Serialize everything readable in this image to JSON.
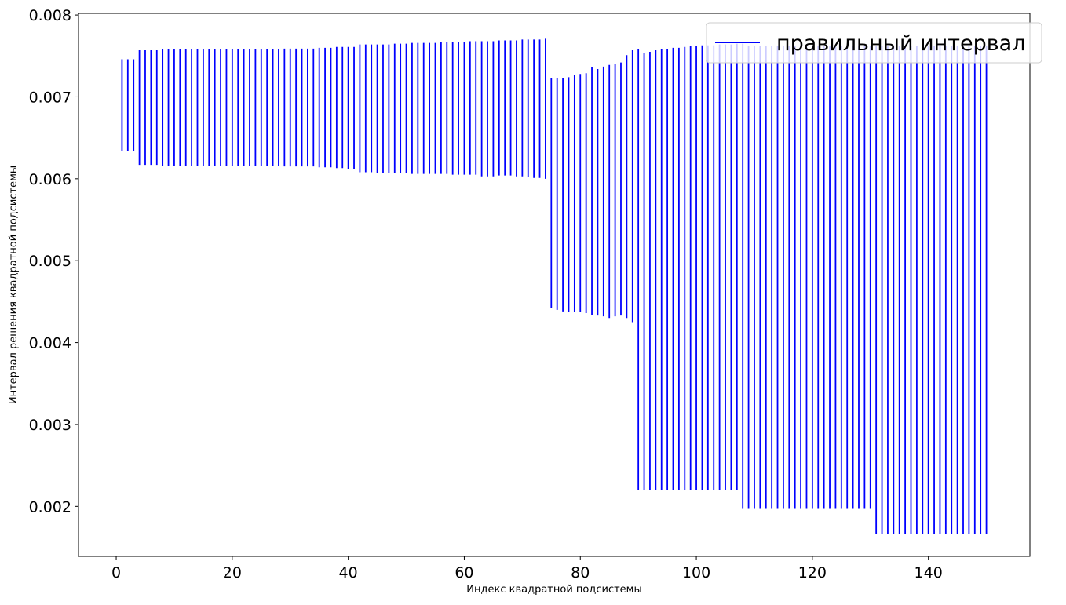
{
  "chart_data": {
    "type": "interval",
    "title": "",
    "xlabel": "Индекс квадратной подсистемы",
    "ylabel": "Интервал решения квадратной подсистемы",
    "xlim": [
      -6.5,
      157.5
    ],
    "ylim": [
      0.00139,
      0.00802
    ],
    "xticks": [
      0,
      20,
      40,
      60,
      80,
      100,
      120,
      140
    ],
    "xtick_labels": [
      "0",
      "20",
      "40",
      "60",
      "80",
      "100",
      "120",
      "140"
    ],
    "yticks": [
      0.002,
      0.003,
      0.004,
      0.005,
      0.006,
      0.007,
      0.008
    ],
    "ytick_labels": [
      "0.002",
      "0.003",
      "0.004",
      "0.005",
      "0.006",
      "0.007",
      "0.008"
    ],
    "grid": false,
    "legend_position": "top-right",
    "series": [
      {
        "name": "правильный интервал",
        "color": "#0000ff",
        "x_start": 1,
        "lower": [
          0.00634,
          0.00634,
          0.00634,
          0.00617,
          0.00617,
          0.00617,
          0.00617,
          0.00616,
          0.00616,
          0.00616,
          0.00616,
          0.00616,
          0.00616,
          0.00616,
          0.00616,
          0.00616,
          0.00616,
          0.00616,
          0.00616,
          0.00616,
          0.00616,
          0.00616,
          0.00616,
          0.00616,
          0.00616,
          0.00616,
          0.00616,
          0.00616,
          0.00615,
          0.00615,
          0.00615,
          0.00615,
          0.00615,
          0.00615,
          0.00614,
          0.00614,
          0.00614,
          0.00613,
          0.00613,
          0.00612,
          0.00612,
          0.00608,
          0.00608,
          0.00608,
          0.00607,
          0.00607,
          0.00607,
          0.00607,
          0.00607,
          0.00607,
          0.00606,
          0.00606,
          0.00606,
          0.00606,
          0.00606,
          0.00606,
          0.00606,
          0.00605,
          0.00605,
          0.00605,
          0.00605,
          0.00605,
          0.00603,
          0.00603,
          0.00603,
          0.00604,
          0.00604,
          0.00604,
          0.00603,
          0.00603,
          0.00602,
          0.00601,
          0.00601,
          0.006,
          0.00442,
          0.0044,
          0.00438,
          0.00437,
          0.00437,
          0.00437,
          0.00436,
          0.00434,
          0.00433,
          0.00432,
          0.0043,
          0.00432,
          0.00433,
          0.0043,
          0.00425,
          0.0022,
          0.0022,
          0.0022,
          0.0022,
          0.0022,
          0.0022,
          0.0022,
          0.0022,
          0.0022,
          0.0022,
          0.0022,
          0.0022,
          0.0022,
          0.0022,
          0.0022,
          0.0022,
          0.0022,
          0.0022,
          0.00197,
          0.00197,
          0.00197,
          0.00197,
          0.00197,
          0.00197,
          0.00197,
          0.00197,
          0.00197,
          0.00197,
          0.00197,
          0.00197,
          0.00197,
          0.00197,
          0.00197,
          0.00197,
          0.00197,
          0.00197,
          0.00197,
          0.00197,
          0.00197,
          0.00197,
          0.00197,
          0.00166,
          0.00166,
          0.00166,
          0.00166,
          0.00166,
          0.00166,
          0.00166,
          0.00166,
          0.00166,
          0.00166,
          0.00166,
          0.00166,
          0.00166,
          0.00166,
          0.00166,
          0.00166,
          0.00166,
          0.00166,
          0.00166,
          0.00166
        ],
        "upper": [
          0.00746,
          0.00746,
          0.00746,
          0.00757,
          0.00757,
          0.00757,
          0.00757,
          0.00758,
          0.00758,
          0.00758,
          0.00758,
          0.00758,
          0.00758,
          0.00758,
          0.00758,
          0.00758,
          0.00758,
          0.00758,
          0.00758,
          0.00758,
          0.00758,
          0.00758,
          0.00758,
          0.00758,
          0.00758,
          0.00758,
          0.00758,
          0.00758,
          0.00759,
          0.00759,
          0.00759,
          0.00759,
          0.00759,
          0.00759,
          0.0076,
          0.0076,
          0.0076,
          0.00761,
          0.00761,
          0.00761,
          0.00761,
          0.00764,
          0.00764,
          0.00764,
          0.00764,
          0.00764,
          0.00764,
          0.00765,
          0.00765,
          0.00765,
          0.00766,
          0.00766,
          0.00766,
          0.00766,
          0.00766,
          0.00767,
          0.00767,
          0.00767,
          0.00767,
          0.00767,
          0.00768,
          0.00768,
          0.00768,
          0.00768,
          0.00768,
          0.00769,
          0.00769,
          0.00769,
          0.00769,
          0.0077,
          0.0077,
          0.0077,
          0.0077,
          0.00771,
          0.00723,
          0.00723,
          0.00723,
          0.00724,
          0.00727,
          0.00728,
          0.00729,
          0.00736,
          0.00734,
          0.00737,
          0.00739,
          0.0074,
          0.00742,
          0.00751,
          0.00757,
          0.00758,
          0.00754,
          0.00755,
          0.00757,
          0.00758,
          0.00758,
          0.0076,
          0.0076,
          0.00761,
          0.00762,
          0.00762,
          0.00763,
          0.00763,
          0.00763,
          0.00764,
          0.00764,
          0.00764,
          0.00765,
          0.00765,
          0.00762,
          0.00762,
          0.00762,
          0.00762,
          0.00762,
          0.00762,
          0.00762,
          0.00762,
          0.00762,
          0.00762,
          0.00762,
          0.00762,
          0.00762,
          0.00762,
          0.00762,
          0.00762,
          0.00762,
          0.00762,
          0.00762,
          0.00762,
          0.00762,
          0.00762,
          0.00762,
          0.00762,
          0.00762,
          0.00762,
          0.00762,
          0.00762,
          0.00762,
          0.00762,
          0.00762,
          0.00762,
          0.00762,
          0.00762,
          0.00762,
          0.00762,
          0.00762,
          0.00762,
          0.00762,
          0.00762,
          0.00762,
          0.00762
        ]
      }
    ]
  }
}
